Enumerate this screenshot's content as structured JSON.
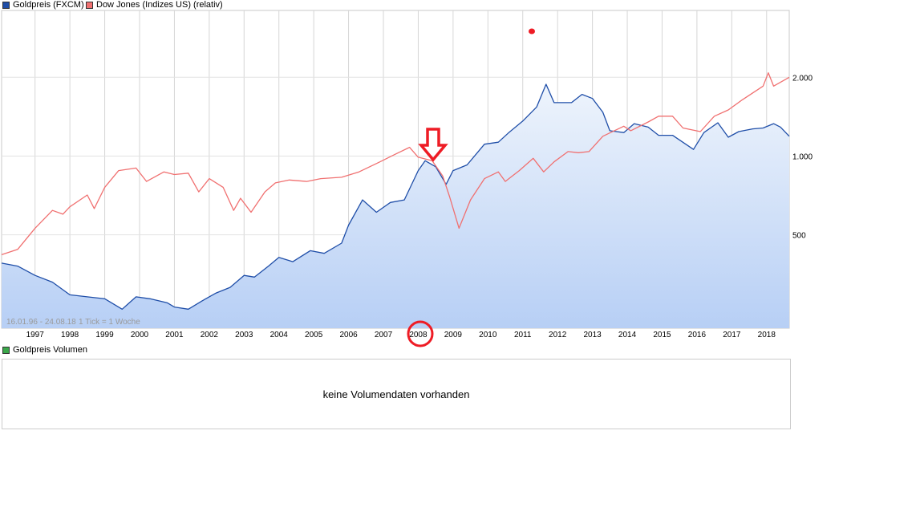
{
  "legend": {
    "gold": {
      "label": "Goldpreis (FXCM)",
      "color": "#1f4ea8"
    },
    "dow": {
      "label": "Dow Jones (Indizes US) (relativ)",
      "color": "#f07070"
    }
  },
  "info": {
    "range": "16.01.96 - 24.08.18",
    "tick": "1 Tick = 1 Woche"
  },
  "volume": {
    "label": "Goldpreis Volumen",
    "color": "#3aa84a",
    "message": "keine Volumendaten vorhanden"
  },
  "annotations": {
    "arrow_icon": "down-arrow-icon",
    "circle_icon": "highlight-circle-icon",
    "dot_icon": "red-dot-icon",
    "highlight_color": "#ee1c25"
  },
  "chart_data": {
    "type": "line",
    "x_range": [
      1996.04,
      2018.65
    ],
    "y_scale": "log",
    "y_range": [
      220,
      3600
    ],
    "grid": true,
    "x_ticks": [
      "1997",
      "1998",
      "1999",
      "2000",
      "2001",
      "2002",
      "2003",
      "2004",
      "2005",
      "2006",
      "2007",
      "2008",
      "2009",
      "2010",
      "2011",
      "2012",
      "2013",
      "2014",
      "2015",
      "2016",
      "2017",
      "2018"
    ],
    "y_ticks": [
      {
        "value": 500,
        "label": "500"
      },
      {
        "value": 1000,
        "label": "1.000"
      },
      {
        "value": 2000,
        "label": "2.000"
      }
    ],
    "series": [
      {
        "name": "Goldpreis (FXCM)",
        "area": true,
        "points": [
          [
            1996.04,
            390
          ],
          [
            1996.5,
            380
          ],
          [
            1997.0,
            350
          ],
          [
            1997.5,
            330
          ],
          [
            1998.0,
            295
          ],
          [
            1998.5,
            290
          ],
          [
            1999.0,
            285
          ],
          [
            1999.5,
            260
          ],
          [
            1999.9,
            290
          ],
          [
            2000.3,
            285
          ],
          [
            2000.8,
            275
          ],
          [
            2001.0,
            265
          ],
          [
            2001.4,
            260
          ],
          [
            2001.8,
            280
          ],
          [
            2002.2,
            300
          ],
          [
            2002.6,
            315
          ],
          [
            2003.0,
            350
          ],
          [
            2003.3,
            345
          ],
          [
            2003.7,
            380
          ],
          [
            2004.0,
            410
          ],
          [
            2004.4,
            395
          ],
          [
            2004.9,
            435
          ],
          [
            2005.3,
            425
          ],
          [
            2005.8,
            465
          ],
          [
            2006.0,
            545
          ],
          [
            2006.4,
            680
          ],
          [
            2006.8,
            610
          ],
          [
            2007.2,
            665
          ],
          [
            2007.6,
            680
          ],
          [
            2008.0,
            880
          ],
          [
            2008.2,
            960
          ],
          [
            2008.5,
            910
          ],
          [
            2008.8,
            780
          ],
          [
            2009.0,
            880
          ],
          [
            2009.4,
            925
          ],
          [
            2009.9,
            1110
          ],
          [
            2010.3,
            1130
          ],
          [
            2010.6,
            1230
          ],
          [
            2011.0,
            1360
          ],
          [
            2011.4,
            1540
          ],
          [
            2011.67,
            1880
          ],
          [
            2011.9,
            1600
          ],
          [
            2012.4,
            1600
          ],
          [
            2012.7,
            1720
          ],
          [
            2013.0,
            1660
          ],
          [
            2013.3,
            1470
          ],
          [
            2013.5,
            1250
          ],
          [
            2013.9,
            1230
          ],
          [
            2014.2,
            1330
          ],
          [
            2014.6,
            1290
          ],
          [
            2014.9,
            1200
          ],
          [
            2015.3,
            1200
          ],
          [
            2015.9,
            1060
          ],
          [
            2016.2,
            1230
          ],
          [
            2016.6,
            1340
          ],
          [
            2016.9,
            1180
          ],
          [
            2017.2,
            1240
          ],
          [
            2017.6,
            1270
          ],
          [
            2017.9,
            1280
          ],
          [
            2018.2,
            1330
          ],
          [
            2018.4,
            1290
          ],
          [
            2018.65,
            1190
          ]
        ]
      },
      {
        "name": "Dow Jones (Indizes US) (relativ)",
        "area": false,
        "points": [
          [
            1996.04,
            420
          ],
          [
            1996.5,
            440
          ],
          [
            1997.0,
            530
          ],
          [
            1997.5,
            620
          ],
          [
            1997.8,
            600
          ],
          [
            1998.0,
            640
          ],
          [
            1998.5,
            710
          ],
          [
            1998.7,
            630
          ],
          [
            1999.0,
            760
          ],
          [
            1999.4,
            880
          ],
          [
            1999.9,
            900
          ],
          [
            2000.2,
            800
          ],
          [
            2000.7,
            870
          ],
          [
            2001.0,
            850
          ],
          [
            2001.4,
            860
          ],
          [
            2001.7,
            730
          ],
          [
            2002.0,
            820
          ],
          [
            2002.4,
            760
          ],
          [
            2002.7,
            620
          ],
          [
            2002.9,
            690
          ],
          [
            2003.2,
            610
          ],
          [
            2003.6,
            730
          ],
          [
            2003.9,
            790
          ],
          [
            2004.3,
            810
          ],
          [
            2004.8,
            800
          ],
          [
            2005.2,
            820
          ],
          [
            2005.8,
            830
          ],
          [
            2006.3,
            870
          ],
          [
            2006.9,
            950
          ],
          [
            2007.3,
            1010
          ],
          [
            2007.75,
            1080
          ],
          [
            2008.0,
            990
          ],
          [
            2008.4,
            960
          ],
          [
            2008.7,
            840
          ],
          [
            2008.9,
            700
          ],
          [
            2009.17,
            530
          ],
          [
            2009.5,
            680
          ],
          [
            2009.9,
            820
          ],
          [
            2010.3,
            870
          ],
          [
            2010.5,
            800
          ],
          [
            2010.9,
            880
          ],
          [
            2011.3,
            980
          ],
          [
            2011.6,
            870
          ],
          [
            2011.9,
            950
          ],
          [
            2012.3,
            1040
          ],
          [
            2012.6,
            1030
          ],
          [
            2012.9,
            1040
          ],
          [
            2013.3,
            1190
          ],
          [
            2013.9,
            1300
          ],
          [
            2014.1,
            1250
          ],
          [
            2014.6,
            1350
          ],
          [
            2014.9,
            1420
          ],
          [
            2015.3,
            1420
          ],
          [
            2015.6,
            1280
          ],
          [
            2016.1,
            1240
          ],
          [
            2016.5,
            1420
          ],
          [
            2016.9,
            1500
          ],
          [
            2017.3,
            1640
          ],
          [
            2017.9,
            1850
          ],
          [
            2018.05,
            2080
          ],
          [
            2018.2,
            1850
          ],
          [
            2018.65,
            2000
          ]
        ]
      }
    ]
  }
}
